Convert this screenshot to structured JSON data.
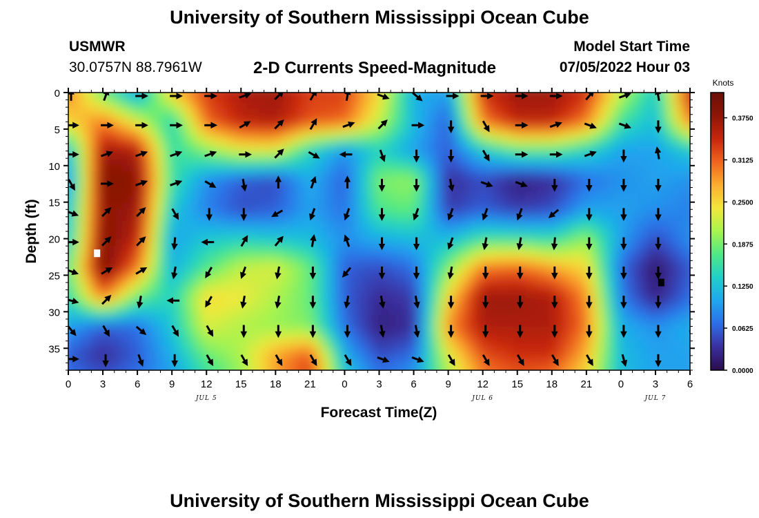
{
  "page": {
    "title_top": "University of Southern Mississippi Ocean Cube",
    "title_bottom": "University of Southern Mississippi Ocean Cube",
    "station": "USMWR",
    "coordinates": "30.0757N  88.7961W",
    "subtitle": "2-D Currents Speed-Magnitude",
    "model_start_label": "Model Start Time",
    "model_start_value": "07/05/2022 Hour 03"
  },
  "chart_data": {
    "type": "heatmap",
    "title": "2-D Currents Speed-Magnitude",
    "xlabel": "Forecast Time(Z)",
    "ylabel": "Depth (ft)",
    "x_ticks": [
      "0",
      "3",
      "6",
      "9",
      "12",
      "15",
      "18",
      "21",
      "0",
      "3",
      "6",
      "9",
      "12",
      "15",
      "18",
      "21",
      "0",
      "3",
      "6"
    ],
    "xlim_hours": [
      0,
      54
    ],
    "ylim": [
      0,
      38
    ],
    "y_inverted": true,
    "y_ticks": [
      0,
      5,
      10,
      15,
      20,
      25,
      30,
      35
    ],
    "date_labels": [
      {
        "text": "JUL 5",
        "hour": 12
      },
      {
        "text": "JUL 6",
        "hour": 36
      },
      {
        "text": "JUL 7",
        "hour": 51
      }
    ],
    "colorbar": {
      "title": "Knots",
      "range": [
        0,
        0.4125
      ],
      "ticks": [
        "0.0000",
        "0.0625",
        "0.1250",
        "0.1875",
        "0.2500",
        "0.3125",
        "0.3750"
      ],
      "tick_values": [
        0,
        0.0625,
        0.125,
        0.1875,
        0.25,
        0.3125,
        0.375
      ],
      "colors": [
        "#2a0c4e",
        "#3b2f9e",
        "#2d6de8",
        "#1fa7ee",
        "#1fcfc9",
        "#4ee886",
        "#a6f44e",
        "#f3e83a",
        "#fbae2f",
        "#f0641e",
        "#c8260e",
        "#8e1606",
        "#6a0f06"
      ]
    },
    "speed_grid": {
      "x_hours": [
        0,
        3,
        6,
        9,
        12,
        15,
        18,
        21,
        24,
        27,
        30,
        33,
        36,
        39,
        42,
        45,
        48,
        51,
        54
      ],
      "depths": [
        0,
        4,
        8,
        12,
        16,
        20,
        24,
        28,
        32,
        36,
        38
      ],
      "values_knots": [
        [
          0.3,
          0.18,
          0.1,
          0.26,
          0.33,
          0.36,
          0.37,
          0.33,
          0.33,
          0.25,
          0.11,
          0.1,
          0.34,
          0.37,
          0.37,
          0.34,
          0.22,
          0.13,
          0.35
        ],
        [
          0.25,
          0.3,
          0.23,
          0.14,
          0.31,
          0.35,
          0.36,
          0.32,
          0.31,
          0.22,
          0.12,
          0.06,
          0.3,
          0.35,
          0.35,
          0.3,
          0.16,
          0.12,
          0.3
        ],
        [
          0.12,
          0.37,
          0.36,
          0.15,
          0.19,
          0.23,
          0.23,
          0.14,
          0.09,
          0.14,
          0.1,
          0.06,
          0.13,
          0.17,
          0.17,
          0.14,
          0.1,
          0.1,
          0.13
        ],
        [
          0.09,
          0.39,
          0.38,
          0.16,
          0.09,
          0.06,
          0.05,
          0.11,
          0.06,
          0.19,
          0.2,
          0.03,
          0.05,
          0.02,
          0.03,
          0.07,
          0.09,
          0.1,
          0.09
        ],
        [
          0.12,
          0.38,
          0.37,
          0.13,
          0.08,
          0.05,
          0.06,
          0.1,
          0.07,
          0.17,
          0.18,
          0.04,
          0.06,
          0.04,
          0.05,
          0.1,
          0.1,
          0.09,
          0.08
        ],
        [
          0.13,
          0.39,
          0.35,
          0.1,
          0.13,
          0.14,
          0.13,
          0.12,
          0.09,
          0.11,
          0.12,
          0.12,
          0.16,
          0.16,
          0.15,
          0.2,
          0.1,
          0.05,
          0.09
        ],
        [
          0.17,
          0.4,
          0.3,
          0.11,
          0.17,
          0.22,
          0.23,
          0.18,
          0.06,
          0.05,
          0.07,
          0.19,
          0.3,
          0.31,
          0.28,
          0.25,
          0.07,
          0.01,
          0.06
        ],
        [
          0.15,
          0.3,
          0.18,
          0.14,
          0.25,
          0.24,
          0.21,
          0.18,
          0.06,
          0.03,
          0.04,
          0.25,
          0.37,
          0.37,
          0.36,
          0.29,
          0.08,
          0.02,
          0.07
        ],
        [
          0.1,
          0.06,
          0.07,
          0.13,
          0.23,
          0.21,
          0.2,
          0.19,
          0.07,
          0.02,
          0.03,
          0.29,
          0.36,
          0.36,
          0.36,
          0.3,
          0.11,
          0.09,
          0.11
        ],
        [
          0.06,
          0.03,
          0.06,
          0.11,
          0.18,
          0.21,
          0.28,
          0.32,
          0.11,
          0.05,
          0.07,
          0.23,
          0.32,
          0.34,
          0.34,
          0.27,
          0.12,
          0.1,
          0.1
        ],
        [
          0.07,
          0.05,
          0.07,
          0.1,
          0.16,
          0.2,
          0.28,
          0.33,
          0.13,
          0.07,
          0.09,
          0.21,
          0.3,
          0.32,
          0.31,
          0.25,
          0.12,
          0.1,
          0.1
        ]
      ]
    },
    "vectors": {
      "x_hours": [
        0,
        3,
        6,
        9,
        12,
        15,
        18,
        21,
        24,
        27,
        30,
        33,
        36,
        39,
        42,
        45,
        48,
        51,
        54
      ],
      "depths": [
        0,
        4,
        8,
        12,
        16,
        20,
        24,
        28,
        32,
        36
      ],
      "angles_deg": [
        [
          90,
          70,
          0,
          0,
          0,
          20,
          45,
          60,
          80,
          -20,
          -40,
          0,
          0,
          0,
          0,
          50,
          20,
          100,
          90
        ],
        [
          0,
          0,
          0,
          0,
          0,
          30,
          45,
          60,
          20,
          45,
          0,
          -90,
          -60,
          0,
          20,
          -20,
          -20,
          -90,
          90
        ],
        [
          0,
          20,
          20,
          20,
          20,
          0,
          45,
          -30,
          180,
          -70,
          -90,
          -90,
          -60,
          0,
          0,
          20,
          -90,
          100,
          90
        ],
        [
          -60,
          0,
          20,
          20,
          -30,
          -80,
          90,
          70,
          90,
          -90,
          -90,
          -80,
          -20,
          -20,
          -90,
          -90,
          -90,
          -90,
          -70
        ],
        [
          -20,
          45,
          45,
          -60,
          -90,
          -90,
          -150,
          -110,
          -110,
          -90,
          -110,
          -110,
          -110,
          -110,
          -140,
          -90,
          -90,
          -90,
          -90
        ],
        [
          0,
          45,
          45,
          -95,
          180,
          60,
          50,
          80,
          110,
          -90,
          -90,
          -110,
          -100,
          -100,
          -95,
          -90,
          -90,
          -90,
          -90
        ],
        [
          -20,
          30,
          30,
          -100,
          -120,
          -110,
          -100,
          -90,
          -130,
          -90,
          -90,
          -100,
          -90,
          -90,
          -90,
          -90,
          -90,
          -90,
          -90
        ],
        [
          -15,
          45,
          -100,
          180,
          -120,
          -100,
          -100,
          -90,
          -100,
          -80,
          -80,
          -90,
          -90,
          -90,
          -90,
          -90,
          -90,
          -90,
          -110
        ],
        [
          -50,
          -60,
          -40,
          -60,
          -60,
          -90,
          -90,
          -90,
          -90,
          -80,
          -80,
          -90,
          -90,
          -90,
          -90,
          -90,
          -90,
          -90,
          -110
        ],
        [
          0,
          -90,
          -70,
          -90,
          -60,
          -60,
          -60,
          -60,
          -60,
          -20,
          -20,
          -60,
          -60,
          -60,
          -60,
          -60,
          -75,
          -90,
          -60
        ]
      ]
    },
    "markers": [
      {
        "color": "#ffffff",
        "hour": 2.5,
        "depth": 22
      },
      {
        "color": "#000000",
        "hour": 51.5,
        "depth": 26
      }
    ]
  }
}
